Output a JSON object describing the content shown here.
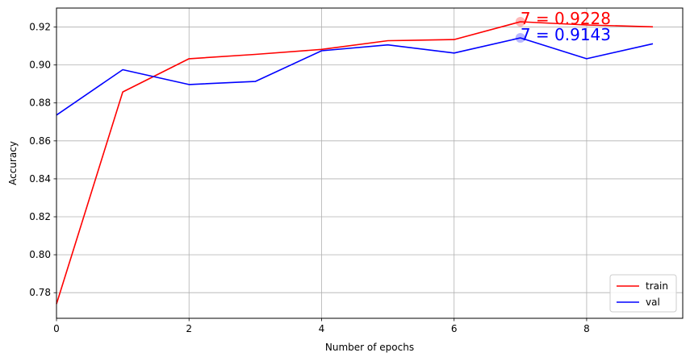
{
  "chart_data": {
    "type": "line",
    "title": "",
    "xlabel": "Number of epochs",
    "ylabel": "Accuracy",
    "xlim": [
      0,
      9.45
    ],
    "ylim": [
      0.7665,
      0.93
    ],
    "grid": true,
    "x_ticks": [
      0,
      2,
      4,
      6,
      8
    ],
    "y_ticks": [
      0.78,
      0.8,
      0.82,
      0.84,
      0.86,
      0.88,
      0.9,
      0.92
    ],
    "x_tick_labels": [
      "0",
      "2",
      "4",
      "6",
      "8"
    ],
    "y_tick_labels": [
      "0.78",
      "0.80",
      "0.82",
      "0.84",
      "0.86",
      "0.88",
      "0.90",
      "0.92"
    ],
    "x": [
      0,
      1,
      2,
      3,
      4,
      5,
      6,
      7,
      8,
      9
    ],
    "series": [
      {
        "name": "train",
        "color": "#ff0000",
        "values": [
          0.774,
          0.8858,
          0.9033,
          0.9056,
          0.9082,
          0.9128,
          0.9134,
          0.9228,
          0.9211,
          0.9201
        ]
      },
      {
        "name": "val",
        "color": "#0000ff",
        "values": [
          0.8736,
          0.8975,
          0.8897,
          0.8913,
          0.9075,
          0.9106,
          0.9063,
          0.9143,
          0.9033,
          0.9112
        ]
      }
    ],
    "annotations": [
      {
        "text": "7 = 0.9228",
        "x": 7,
        "y": 0.9228,
        "color": "#ff0000"
      },
      {
        "text": "7 = 0.9143",
        "x": 7,
        "y": 0.9143,
        "color": "#0000ff"
      }
    ],
    "legend": {
      "placement": "bottom-right",
      "entries": [
        "train",
        "val"
      ]
    }
  }
}
